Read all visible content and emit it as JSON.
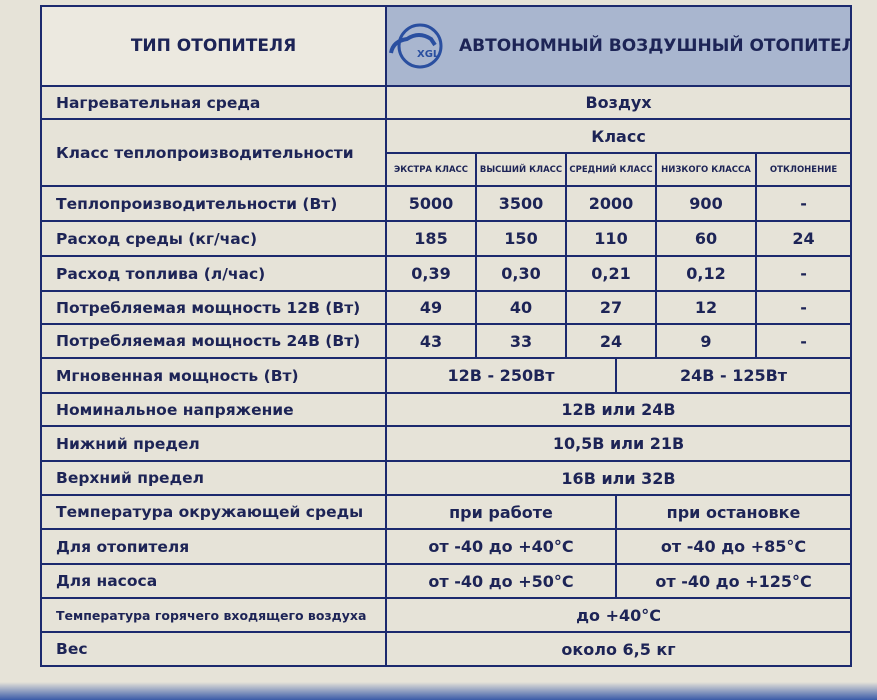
{
  "header": {
    "left": "ТИП ОТОПИТЕЛЯ",
    "right": "АВТОНОМНЫЙ ВОЗДУШНЫЙ ОТОПИТЕЛЬ",
    "logo_text": "XGL"
  },
  "medium": {
    "label": "Нагревательная среда",
    "value": "Воздух"
  },
  "class_row": {
    "label": "Класс теплопроизводительности",
    "title": "Класс",
    "columns": [
      "ЭКСТРА КЛАСС",
      "ВЫСШИЙ КЛАСС",
      "СРЕДНИЙ КЛАСС",
      "НИЗКОГО КЛАССА",
      "ОТКЛОНЕНИЕ"
    ]
  },
  "rows": [
    {
      "label": "Теплопроизводительности  (Вт)",
      "values": [
        "5000",
        "3500",
        "2000",
        "900",
        "-"
      ]
    },
    {
      "label": "Расход среды (кг/час)",
      "values": [
        "185",
        "150",
        "110",
        "60",
        "24"
      ]
    },
    {
      "label": "Расход топлива (л/час)",
      "values": [
        "0,39",
        "0,30",
        "0,21",
        "0,12",
        "-"
      ]
    },
    {
      "label": "Потребляемая мощность 12В (Вт)",
      "values": [
        "49",
        "40",
        "27",
        "12",
        "-"
      ]
    },
    {
      "label": "Потребляемая мощность 24В (Вт)",
      "values": [
        "43",
        "33",
        "24",
        "9",
        "-"
      ]
    }
  ],
  "instant": {
    "label": "Мгновенная мощность (Вт)",
    "v12": "12В - 250Вт",
    "v24": "24В - 125Вт"
  },
  "nominal": {
    "label": "Номинальное напряжение",
    "value": "12В или 24В"
  },
  "lower": {
    "label": "Нижний предел",
    "value": "10,5В или 21В"
  },
  "upper": {
    "label": "Верхний предел",
    "value": "16В или 32В"
  },
  "ambient": {
    "label": "Температура окружающей среды",
    "working": "при работе",
    "stopped": "при остановке"
  },
  "heater": {
    "label": "Для отопителя",
    "working": "от -40 до +40°С",
    "stopped": "от -40 до +85°С"
  },
  "pump": {
    "label": "Для насоса",
    "working": "от -40 до +50°С",
    "stopped": "от -40 до +125°С"
  },
  "hot_air": {
    "label": "Температура горячего входящего воздуха",
    "value": "до +40°С"
  },
  "weight": {
    "label": "Вес",
    "value": "около 6,5 кг"
  }
}
